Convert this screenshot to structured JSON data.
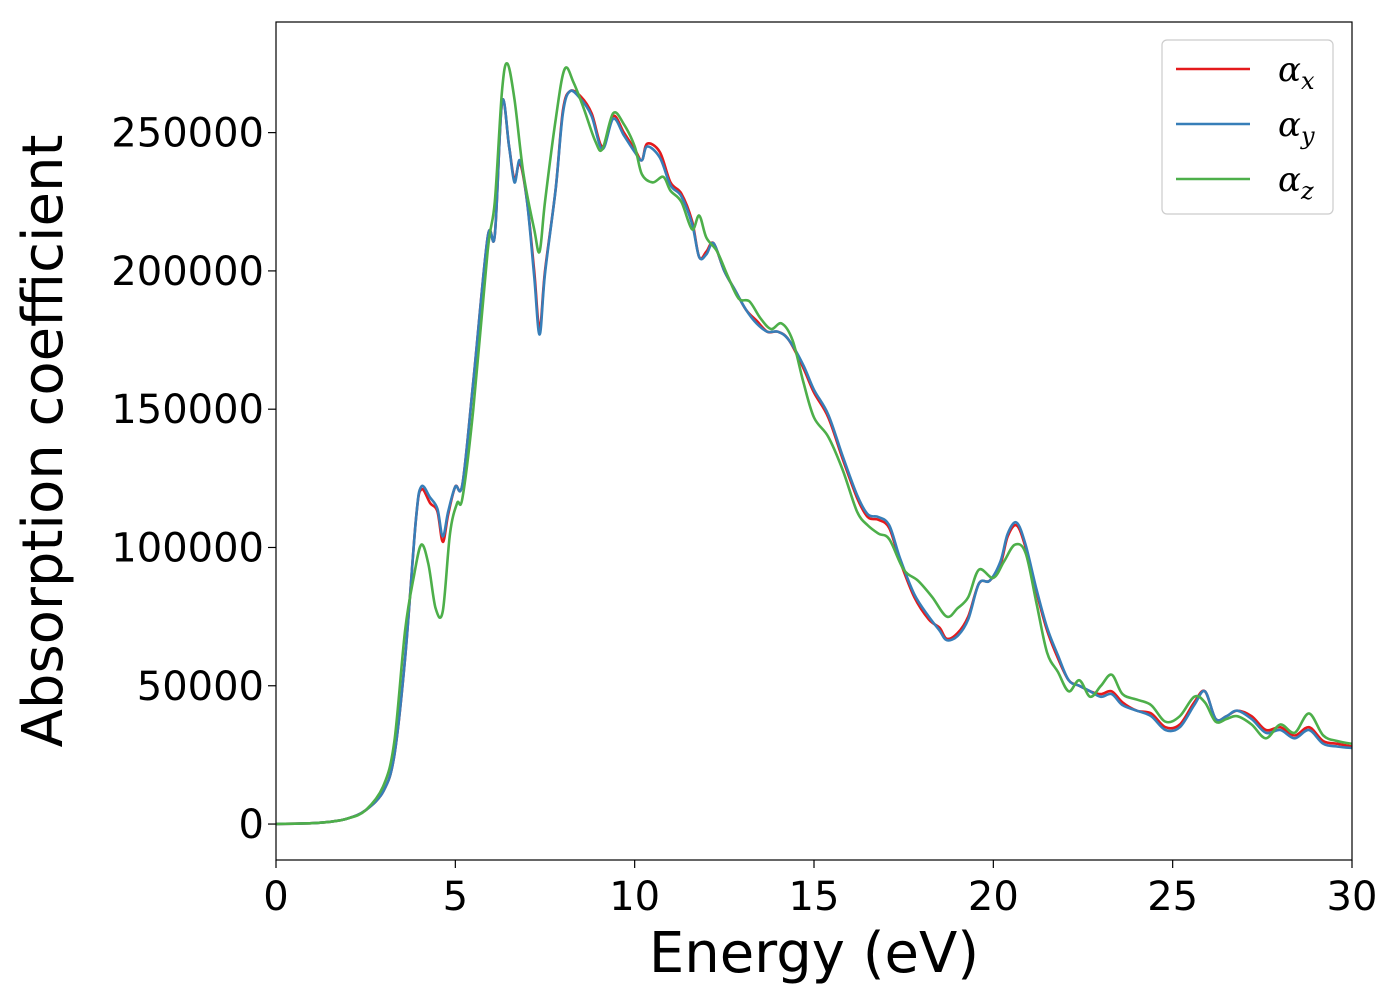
{
  "chart_data": {
    "type": "line",
    "title": "",
    "xlabel": "Energy (eV)",
    "ylabel": "Absorption coefficient",
    "xlim": [
      0,
      30
    ],
    "ylim": [
      -13000,
      290000
    ],
    "xticks": [
      0,
      5,
      10,
      15,
      20,
      25,
      30
    ],
    "yticks": [
      0,
      50000,
      100000,
      150000,
      200000,
      250000
    ],
    "legend": "top-right",
    "grid": false,
    "series": [
      {
        "name": "α_x",
        "label_main": "α",
        "label_sub": "x",
        "color": "#e41a1c",
        "points": [
          [
            0,
            0
          ],
          [
            1,
            300
          ],
          [
            1.5,
            800
          ],
          [
            2,
            2000
          ],
          [
            2.5,
            5000
          ],
          [
            3,
            12000
          ],
          [
            3.3,
            25000
          ],
          [
            3.6,
            60000
          ],
          [
            3.9,
            110000
          ],
          [
            4.05,
            121000
          ],
          [
            4.3,
            116000
          ],
          [
            4.5,
            113000
          ],
          [
            4.65,
            102000
          ],
          [
            4.8,
            112000
          ],
          [
            5.0,
            122000
          ],
          [
            5.2,
            123000
          ],
          [
            5.5,
            160000
          ],
          [
            5.9,
            212000
          ],
          [
            6.1,
            213000
          ],
          [
            6.3,
            261000
          ],
          [
            6.5,
            245000
          ],
          [
            6.65,
            233000
          ],
          [
            6.8,
            239000
          ],
          [
            7.0,
            225000
          ],
          [
            7.2,
            200000
          ],
          [
            7.35,
            179000
          ],
          [
            7.5,
            200000
          ],
          [
            7.8,
            230000
          ],
          [
            8.0,
            258000
          ],
          [
            8.2,
            265000
          ],
          [
            8.5,
            263000
          ],
          [
            8.8,
            257000
          ],
          [
            9.1,
            245000
          ],
          [
            9.4,
            256000
          ],
          [
            9.7,
            250000
          ],
          [
            10.0,
            244000
          ],
          [
            10.2,
            240000
          ],
          [
            10.35,
            246000
          ],
          [
            10.7,
            243000
          ],
          [
            11.0,
            232000
          ],
          [
            11.3,
            228000
          ],
          [
            11.6,
            218000
          ],
          [
            11.8,
            205000
          ],
          [
            12.0,
            207000
          ],
          [
            12.2,
            210000
          ],
          [
            12.5,
            200000
          ],
          [
            12.8,
            193000
          ],
          [
            13.1,
            186000
          ],
          [
            13.4,
            182000
          ],
          [
            13.7,
            178000
          ],
          [
            14.0,
            178000
          ],
          [
            14.3,
            175000
          ],
          [
            14.7,
            165000
          ],
          [
            15.0,
            156000
          ],
          [
            15.4,
            147000
          ],
          [
            15.8,
            132000
          ],
          [
            16.2,
            118000
          ],
          [
            16.5,
            111000
          ],
          [
            16.8,
            110000
          ],
          [
            17.1,
            107000
          ],
          [
            17.4,
            95000
          ],
          [
            17.8,
            82000
          ],
          [
            18.2,
            74000
          ],
          [
            18.5,
            71000
          ],
          [
            18.7,
            67000
          ],
          [
            19.0,
            69000
          ],
          [
            19.3,
            75000
          ],
          [
            19.6,
            87000
          ],
          [
            19.9,
            88000
          ],
          [
            20.2,
            94000
          ],
          [
            20.4,
            104000
          ],
          [
            20.65,
            108000
          ],
          [
            20.9,
            100000
          ],
          [
            21.2,
            84000
          ],
          [
            21.5,
            70000
          ],
          [
            21.8,
            60000
          ],
          [
            22.1,
            52000
          ],
          [
            22.4,
            50000
          ],
          [
            22.7,
            48000
          ],
          [
            23.0,
            47000
          ],
          [
            23.3,
            48000
          ],
          [
            23.6,
            44000
          ],
          [
            24.0,
            41000
          ],
          [
            24.4,
            40000
          ],
          [
            24.8,
            35000
          ],
          [
            25.2,
            36000
          ],
          [
            25.6,
            44000
          ],
          [
            25.9,
            48000
          ],
          [
            26.2,
            38000
          ],
          [
            26.5,
            39000
          ],
          [
            26.8,
            41000
          ],
          [
            27.2,
            39000
          ],
          [
            27.6,
            34000
          ],
          [
            28.0,
            35000
          ],
          [
            28.4,
            32000
          ],
          [
            28.8,
            35000
          ],
          [
            29.2,
            30000
          ],
          [
            29.6,
            29000
          ],
          [
            30,
            28000
          ]
        ]
      },
      {
        "name": "α_y",
        "label_main": "α",
        "label_sub": "y",
        "color": "#377eb8",
        "points": [
          [
            0,
            0
          ],
          [
            1,
            300
          ],
          [
            1.5,
            800
          ],
          [
            2,
            2000
          ],
          [
            2.5,
            5000
          ],
          [
            3,
            12000
          ],
          [
            3.3,
            25000
          ],
          [
            3.6,
            60000
          ],
          [
            3.9,
            110000
          ],
          [
            4.05,
            122000
          ],
          [
            4.3,
            118000
          ],
          [
            4.5,
            114000
          ],
          [
            4.65,
            104000
          ],
          [
            4.8,
            113000
          ],
          [
            5.0,
            122000
          ],
          [
            5.2,
            123000
          ],
          [
            5.5,
            160000
          ],
          [
            5.9,
            212000
          ],
          [
            6.1,
            213000
          ],
          [
            6.3,
            261000
          ],
          [
            6.5,
            245000
          ],
          [
            6.65,
            232000
          ],
          [
            6.8,
            240000
          ],
          [
            7.0,
            225000
          ],
          [
            7.2,
            198000
          ],
          [
            7.35,
            177000
          ],
          [
            7.5,
            199000
          ],
          [
            7.8,
            230000
          ],
          [
            8.0,
            257000
          ],
          [
            8.2,
            265000
          ],
          [
            8.5,
            262000
          ],
          [
            8.8,
            256000
          ],
          [
            9.1,
            244000
          ],
          [
            9.4,
            255000
          ],
          [
            9.7,
            249000
          ],
          [
            10.0,
            243000
          ],
          [
            10.2,
            240000
          ],
          [
            10.35,
            245000
          ],
          [
            10.7,
            241000
          ],
          [
            11.0,
            231000
          ],
          [
            11.3,
            227000
          ],
          [
            11.6,
            217000
          ],
          [
            11.8,
            205000
          ],
          [
            12.0,
            206000
          ],
          [
            12.2,
            210000
          ],
          [
            12.5,
            200000
          ],
          [
            12.8,
            193000
          ],
          [
            13.1,
            186000
          ],
          [
            13.4,
            181000
          ],
          [
            13.7,
            178000
          ],
          [
            14.0,
            178000
          ],
          [
            14.3,
            175000
          ],
          [
            14.7,
            166000
          ],
          [
            15.0,
            157000
          ],
          [
            15.4,
            148000
          ],
          [
            15.8,
            133000
          ],
          [
            16.2,
            119000
          ],
          [
            16.5,
            112000
          ],
          [
            16.8,
            111000
          ],
          [
            17.1,
            108000
          ],
          [
            17.4,
            96000
          ],
          [
            17.8,
            83000
          ],
          [
            18.2,
            75000
          ],
          [
            18.5,
            70000
          ],
          [
            18.7,
            66500
          ],
          [
            19.0,
            68000
          ],
          [
            19.3,
            74000
          ],
          [
            19.6,
            87000
          ],
          [
            19.9,
            88000
          ],
          [
            20.2,
            95000
          ],
          [
            20.4,
            105000
          ],
          [
            20.65,
            109000
          ],
          [
            20.9,
            101000
          ],
          [
            21.2,
            85000
          ],
          [
            21.5,
            71000
          ],
          [
            21.8,
            61000
          ],
          [
            22.1,
            52000
          ],
          [
            22.4,
            50000
          ],
          [
            22.7,
            48000
          ],
          [
            23.0,
            46000
          ],
          [
            23.3,
            47000
          ],
          [
            23.6,
            43000
          ],
          [
            24.0,
            41000
          ],
          [
            24.4,
            39000
          ],
          [
            24.8,
            34000
          ],
          [
            25.2,
            35000
          ],
          [
            25.6,
            43000
          ],
          [
            25.9,
            48000
          ],
          [
            26.2,
            38000
          ],
          [
            26.5,
            39000
          ],
          [
            26.8,
            41000
          ],
          [
            27.2,
            38000
          ],
          [
            27.6,
            33000
          ],
          [
            28.0,
            34000
          ],
          [
            28.4,
            31000
          ],
          [
            28.8,
            34000
          ],
          [
            29.2,
            29000
          ],
          [
            29.6,
            28000
          ],
          [
            30,
            27500
          ]
        ]
      },
      {
        "name": "α_z",
        "label_main": "α",
        "label_sub": "z",
        "color": "#4daf4a",
        "points": [
          [
            0,
            0
          ],
          [
            1,
            300
          ],
          [
            1.5,
            800
          ],
          [
            2,
            2000
          ],
          [
            2.5,
            5000
          ],
          [
            3,
            14000
          ],
          [
            3.3,
            30000
          ],
          [
            3.6,
            70000
          ],
          [
            3.85,
            90000
          ],
          [
            4.05,
            101000
          ],
          [
            4.25,
            94000
          ],
          [
            4.45,
            78000
          ],
          [
            4.65,
            77000
          ],
          [
            4.85,
            105000
          ],
          [
            5.05,
            116000
          ],
          [
            5.2,
            118000
          ],
          [
            5.5,
            150000
          ],
          [
            5.9,
            207000
          ],
          [
            6.1,
            225000
          ],
          [
            6.3,
            265000
          ],
          [
            6.45,
            275000
          ],
          [
            6.65,
            262000
          ],
          [
            6.9,
            235000
          ],
          [
            7.2,
            215000
          ],
          [
            7.35,
            207000
          ],
          [
            7.5,
            225000
          ],
          [
            7.8,
            255000
          ],
          [
            8.05,
            273000
          ],
          [
            8.3,
            268000
          ],
          [
            8.6,
            258000
          ],
          [
            8.9,
            247000
          ],
          [
            9.1,
            244000
          ],
          [
            9.4,
            257000
          ],
          [
            9.7,
            253000
          ],
          [
            10.0,
            245000
          ],
          [
            10.2,
            235000
          ],
          [
            10.5,
            232000
          ],
          [
            10.8,
            234000
          ],
          [
            11.0,
            229000
          ],
          [
            11.3,
            225000
          ],
          [
            11.6,
            215000
          ],
          [
            11.8,
            220000
          ],
          [
            12.0,
            212000
          ],
          [
            12.3,
            207000
          ],
          [
            12.6,
            198000
          ],
          [
            12.9,
            190000
          ],
          [
            13.2,
            189000
          ],
          [
            13.5,
            183000
          ],
          [
            13.8,
            179000
          ],
          [
            14.1,
            181000
          ],
          [
            14.4,
            175000
          ],
          [
            14.7,
            160000
          ],
          [
            15.0,
            147000
          ],
          [
            15.4,
            140000
          ],
          [
            15.8,
            128000
          ],
          [
            16.2,
            113000
          ],
          [
            16.5,
            108000
          ],
          [
            16.8,
            105000
          ],
          [
            17.1,
            103000
          ],
          [
            17.5,
            92000
          ],
          [
            17.9,
            88000
          ],
          [
            18.3,
            82000
          ],
          [
            18.7,
            75000
          ],
          [
            19.0,
            78000
          ],
          [
            19.3,
            82000
          ],
          [
            19.6,
            92000
          ],
          [
            20.0,
            89000
          ],
          [
            20.3,
            95000
          ],
          [
            20.6,
            101000
          ],
          [
            20.9,
            98000
          ],
          [
            21.2,
            80000
          ],
          [
            21.5,
            62000
          ],
          [
            21.8,
            55000
          ],
          [
            22.1,
            48000
          ],
          [
            22.4,
            52000
          ],
          [
            22.7,
            46000
          ],
          [
            23.0,
            50000
          ],
          [
            23.3,
            54000
          ],
          [
            23.6,
            47000
          ],
          [
            24.0,
            45000
          ],
          [
            24.4,
            43000
          ],
          [
            24.8,
            37000
          ],
          [
            25.2,
            39000
          ],
          [
            25.6,
            46000
          ],
          [
            25.9,
            44000
          ],
          [
            26.2,
            37000
          ],
          [
            26.5,
            38000
          ],
          [
            26.8,
            39000
          ],
          [
            27.2,
            36000
          ],
          [
            27.6,
            31000
          ],
          [
            28.0,
            36000
          ],
          [
            28.4,
            33000
          ],
          [
            28.8,
            40000
          ],
          [
            29.2,
            32000
          ],
          [
            29.6,
            30000
          ],
          [
            30,
            29000
          ]
        ]
      }
    ]
  }
}
